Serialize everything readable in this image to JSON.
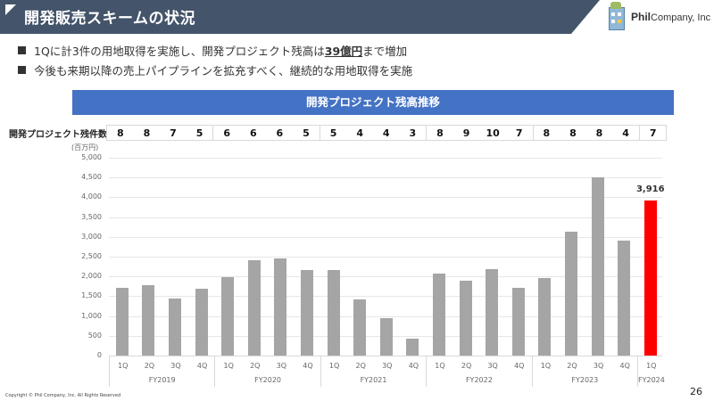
{
  "header": {
    "title": "開発販売スキームの状況",
    "logo_brand": "Phil",
    "logo_company": "Company, Inc",
    "bg_color": "#44546a"
  },
  "bullets": [
    {
      "pre": "1Qに計3件の用地取得を実施し、開発プロジェクト残高は",
      "highlight": "39億円",
      "post": "まで増加"
    },
    {
      "pre": "今後も来期以降の売上パイプラインを拡充すべく、継続的な用地取得を実施",
      "highlight": "",
      "post": ""
    }
  ],
  "chart_banner": {
    "title": "開発プロジェクト残高推移",
    "color": "#4472c4"
  },
  "count_table": {
    "label": "開発プロジェクト残件数",
    "groups": [
      [
        "8",
        "8",
        "7",
        "5"
      ],
      [
        "6",
        "6",
        "6",
        "5"
      ],
      [
        "5",
        "4",
        "4",
        "3"
      ],
      [
        "8",
        "9",
        "10",
        "7"
      ],
      [
        "8",
        "8",
        "8",
        "4"
      ],
      [
        "7"
      ]
    ]
  },
  "chart_data": {
    "type": "bar",
    "title": "開発プロジェクト残高推移",
    "ylabel": "(百万円)",
    "xlabel": "",
    "ylim": [
      0,
      5000
    ],
    "yticks": [
      "0",
      "500",
      "1,000",
      "1,500",
      "2,000",
      "2,500",
      "3,000",
      "3,500",
      "4,000",
      "4,500",
      "5,000"
    ],
    "grid": true,
    "legend": "none",
    "fiscal_years": [
      {
        "label": "FY2019",
        "quarters": [
          "1Q",
          "2Q",
          "3Q",
          "4Q"
        ]
      },
      {
        "label": "FY2020",
        "quarters": [
          "1Q",
          "2Q",
          "3Q",
          "4Q"
        ]
      },
      {
        "label": "FY2021",
        "quarters": [
          "1Q",
          "2Q",
          "3Q",
          "4Q"
        ]
      },
      {
        "label": "FY2022",
        "quarters": [
          "1Q",
          "2Q",
          "3Q",
          "4Q"
        ]
      },
      {
        "label": "FY2023",
        "quarters": [
          "1Q",
          "2Q",
          "3Q",
          "4Q"
        ]
      },
      {
        "label": "FY2024",
        "quarters": [
          "1Q"
        ]
      }
    ],
    "categories": [
      "FY2019 1Q",
      "FY2019 2Q",
      "FY2019 3Q",
      "FY2019 4Q",
      "FY2020 1Q",
      "FY2020 2Q",
      "FY2020 3Q",
      "FY2020 4Q",
      "FY2021 1Q",
      "FY2021 2Q",
      "FY2021 3Q",
      "FY2021 4Q",
      "FY2022 1Q",
      "FY2022 2Q",
      "FY2022 3Q",
      "FY2022 4Q",
      "FY2023 1Q",
      "FY2023 2Q",
      "FY2023 3Q",
      "FY2023 4Q",
      "FY2024 1Q"
    ],
    "values": [
      1720,
      1790,
      1450,
      1700,
      1990,
      2410,
      2450,
      2160,
      2160,
      1420,
      950,
      420,
      2080,
      1890,
      2180,
      1720,
      1960,
      3140,
      4510,
      2910,
      3916
    ],
    "project_counts": [
      8,
      8,
      7,
      5,
      6,
      6,
      6,
      5,
      5,
      4,
      4,
      3,
      8,
      9,
      10,
      7,
      8,
      8,
      8,
      4,
      7
    ],
    "annotations": [
      {
        "index": 20,
        "text": "3,916"
      }
    ],
    "bar_color": "#a5a5a5",
    "highlight_color": "#ff0000",
    "highlight_index": 20
  },
  "footer": {
    "copyright": "Copyright © Phil Company, Inc.  All Rights Reserved",
    "page_number": "26"
  }
}
